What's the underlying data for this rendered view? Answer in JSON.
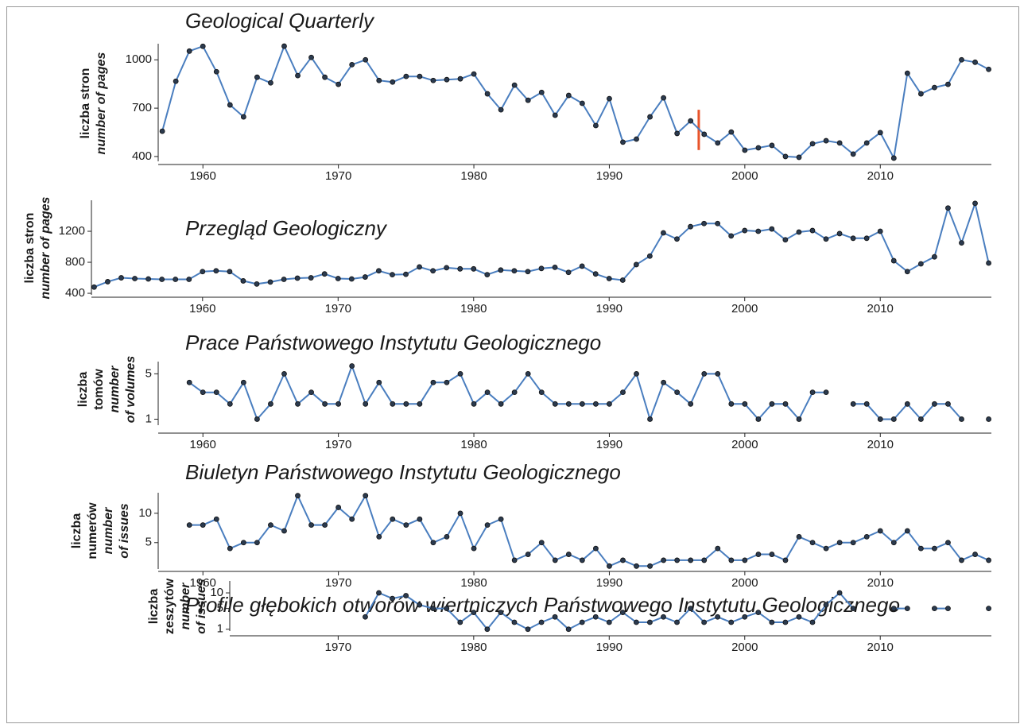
{
  "chart_data": [
    {
      "type": "line",
      "title": "Geological Quarterly",
      "ylabel": {
        "pl": [
          "liczba stron"
        ],
        "en": [
          "number of pages"
        ]
      },
      "color": "#4a7ebf",
      "marker_color": "#2b3a4e",
      "x": [
        1957,
        1958,
        1959,
        1960,
        1961,
        1962,
        1963,
        1964,
        1965,
        1966,
        1967,
        1968,
        1969,
        1970,
        1971,
        1972,
        1973,
        1974,
        1975,
        1976,
        1977,
        1978,
        1979,
        1980,
        1981,
        1982,
        1983,
        1984,
        1985,
        1986,
        1987,
        1988,
        1989,
        1990,
        1991,
        1992,
        1993,
        1994,
        1995,
        1996,
        1997,
        1998,
        1999,
        2000,
        2001,
        2002,
        2003,
        2004,
        2005,
        2006,
        2007,
        2008,
        2009,
        2010,
        2011,
        2012,
        2013,
        2014,
        2015,
        2016,
        2017,
        2018
      ],
      "values": [
        557,
        867,
        1054,
        1084,
        926,
        720,
        646,
        892,
        857,
        1085,
        902,
        1015,
        892,
        848,
        970,
        1000,
        872,
        862,
        897,
        897,
        872,
        877,
        882,
        912,
        789,
        690,
        843,
        749,
        798,
        656,
        779,
        730,
        592,
        759,
        489,
        508,
        646,
        764,
        543,
        621,
        538,
        484,
        552,
        439,
        454,
        469,
        400,
        395,
        479,
        498,
        484,
        415,
        484,
        548,
        390,
        917,
        789,
        828,
        848,
        1000,
        985,
        941
      ],
      "xlim": [
        1956.7,
        2018.2
      ],
      "ylim": [
        370,
        1100
      ],
      "xticks": [
        1960,
        1970,
        1980,
        1990,
        2000,
        2010
      ],
      "yticks": [
        400,
        700,
        1000
      ],
      "marker": {
        "x": 1996.6,
        "y": [
          440,
          690
        ],
        "color": "#e8542a"
      }
    },
    {
      "type": "line",
      "title": "Przegląd Geologiczny",
      "ylabel": {
        "pl": [
          "liczba stron"
        ],
        "en": [
          "number of pages"
        ]
      },
      "color": "#4a7ebf",
      "marker_color": "#2b3a4e",
      "x": [
        1952,
        1953,
        1954,
        1955,
        1956,
        1957,
        1958,
        1959,
        1960,
        1961,
        1962,
        1963,
        1964,
        1965,
        1966,
        1967,
        1968,
        1969,
        1970,
        1971,
        1972,
        1973,
        1974,
        1975,
        1976,
        1977,
        1978,
        1979,
        1980,
        1981,
        1982,
        1983,
        1984,
        1985,
        1986,
        1987,
        1988,
        1989,
        1990,
        1991,
        1992,
        1993,
        1994,
        1995,
        1996,
        1997,
        1998,
        1999,
        2000,
        2001,
        2002,
        2003,
        2004,
        2005,
        2006,
        2007,
        2008,
        2009,
        2010,
        2011,
        2012,
        2013,
        2014,
        2015,
        2016,
        2017,
        2018
      ],
      "values": [
        480,
        550,
        600,
        590,
        585,
        580,
        580,
        580,
        680,
        690,
        680,
        560,
        520,
        545,
        580,
        595,
        600,
        650,
        590,
        585,
        610,
        690,
        640,
        645,
        740,
        690,
        730,
        715,
        715,
        640,
        700,
        690,
        680,
        720,
        735,
        670,
        750,
        650,
        590,
        570,
        770,
        880,
        1180,
        1100,
        1260,
        1300,
        1300,
        1140,
        1210,
        1200,
        1230,
        1090,
        1190,
        1210,
        1100,
        1170,
        1110,
        1110,
        1200,
        820,
        680,
        780,
        870,
        1500,
        1050,
        1560,
        790
      ],
      "xlim": [
        1951.8,
        2018.2
      ],
      "ylim": [
        380,
        1600
      ],
      "xticks": [
        1960,
        1970,
        1980,
        1990,
        2000,
        2010
      ],
      "yticks": [
        400,
        800,
        1200
      ]
    },
    {
      "type": "line",
      "title": "Prace Państwowego Instytutu Geologicznego",
      "ylabel": {
        "pl": [
          "liczba",
          "tomów"
        ],
        "en": [
          "number",
          "of volumes"
        ]
      },
      "color": "#4a7ebf",
      "marker_color": "#2b3a4e",
      "yscale": "sqrt",
      "x": [
        1959,
        1960,
        1961,
        1962,
        1963,
        1964,
        1965,
        1966,
        1967,
        1968,
        1969,
        1970,
        1971,
        1972,
        1973,
        1974,
        1975,
        1976,
        1977,
        1978,
        1979,
        1980,
        1981,
        1982,
        1983,
        1984,
        1985,
        1986,
        1987,
        1988,
        1989,
        1990,
        1991,
        1992,
        1993,
        1994,
        1995,
        1996,
        1997,
        1998,
        1999,
        2000,
        2001,
        2002,
        2003,
        2004,
        2005,
        2006,
        2007,
        2008,
        2009,
        2010,
        2011,
        2012,
        2013,
        2014,
        2015,
        2016,
        2017,
        2018
      ],
      "values": [
        4,
        3,
        3,
        2,
        4,
        1,
        2,
        5,
        2,
        3,
        2,
        2,
        6,
        2,
        4,
        2,
        2,
        2,
        4,
        4,
        5,
        2,
        3,
        2,
        3,
        5,
        3,
        2,
        2,
        2,
        2,
        2,
        3,
        5,
        1,
        4,
        3,
        2,
        5,
        5,
        2,
        2,
        1,
        2,
        2,
        1,
        3,
        3,
        null,
        2,
        2,
        1,
        1,
        2,
        1,
        2,
        2,
        1,
        null,
        1
      ],
      "xlim": [
        1956.7,
        2018.2
      ],
      "ylim": [
        0.7,
        6.6
      ],
      "xticks": [
        1960,
        1970,
        1980,
        1990,
        2000,
        2010
      ],
      "yticks": [
        1,
        5
      ]
    },
    {
      "type": "line",
      "title": "Biuletyn Państwowego Instytutu Geologicznego",
      "ylabel": {
        "pl": [
          "liczba",
          "numerów"
        ],
        "en": [
          "number",
          "of issues"
        ]
      },
      "color": "#4a7ebf",
      "marker_color": "#2b3a4e",
      "x": [
        1959,
        1960,
        1961,
        1962,
        1963,
        1964,
        1965,
        1966,
        1967,
        1968,
        1969,
        1970,
        1971,
        1972,
        1973,
        1974,
        1975,
        1976,
        1977,
        1978,
        1979,
        1980,
        1981,
        1982,
        1983,
        1984,
        1985,
        1986,
        1987,
        1988,
        1989,
        1990,
        1991,
        1992,
        1993,
        1994,
        1995,
        1996,
        1997,
        1998,
        1999,
        2000,
        2001,
        2002,
        2003,
        2004,
        2005,
        2006,
        2007,
        2008,
        2009,
        2010,
        2011,
        2012,
        2013,
        2014,
        2015,
        2016,
        2017,
        2018
      ],
      "values": [
        8,
        8,
        9,
        4,
        5,
        5,
        8,
        7,
        13,
        8,
        8,
        11,
        9,
        13,
        6,
        9,
        8,
        9,
        5,
        6,
        10,
        4,
        8,
        9,
        2,
        3,
        5,
        2,
        3,
        2,
        4,
        1,
        2,
        1,
        1,
        2,
        2,
        2,
        2,
        4,
        2,
        2,
        3,
        3,
        2,
        6,
        5,
        4,
        5,
        5,
        6,
        7,
        5,
        7,
        4,
        4,
        5,
        2,
        3,
        2
      ],
      "xlim": [
        1956.7,
        2018.2
      ],
      "ylim": [
        0.5,
        13.5
      ],
      "xticks": [
        1960,
        1970,
        1980,
        1990,
        2000,
        2010
      ],
      "yticks": [
        5,
        10
      ]
    },
    {
      "type": "line",
      "title": "Profile głębokich otworów wiertniczych Państwowego Instytutu Geologicznego",
      "ylabel": {
        "pl": [
          "liczba",
          "zeszytów"
        ],
        "en": [
          "number",
          "of issues"
        ]
      },
      "color": "#4a7ebf",
      "marker_color": "#2b3a4e",
      "yscale": "sqrt",
      "x": [
        1972,
        1973,
        1974,
        1975,
        1976,
        1977,
        1978,
        1979,
        1980,
        1981,
        1982,
        1983,
        1984,
        1985,
        1986,
        1987,
        1988,
        1989,
        1990,
        1991,
        1992,
        1993,
        1994,
        1995,
        1996,
        1997,
        1998,
        1999,
        2000,
        2001,
        2002,
        2003,
        2004,
        2005,
        2006,
        2007,
        2008,
        2009,
        2010,
        2011,
        2012,
        2013,
        2014,
        2015,
        2016,
        2017,
        2018
      ],
      "values": [
        3,
        10,
        8,
        9,
        6,
        5,
        5,
        2,
        4,
        1,
        4,
        2,
        1,
        2,
        3,
        1,
        2,
        3,
        2,
        4,
        2,
        2,
        3,
        2,
        5,
        2,
        3,
        2,
        3,
        4,
        2,
        2,
        3,
        2,
        6,
        10,
        5,
        null,
        null,
        5,
        5,
        null,
        5,
        5,
        null,
        null,
        5
      ],
      "xlim": [
        1962,
        2018.2
      ],
      "ylim": [
        0.8,
        15
      ],
      "xticks": [
        1970,
        1980,
        1990,
        2000,
        2010
      ],
      "yticks": [
        1,
        5,
        10
      ]
    }
  ]
}
